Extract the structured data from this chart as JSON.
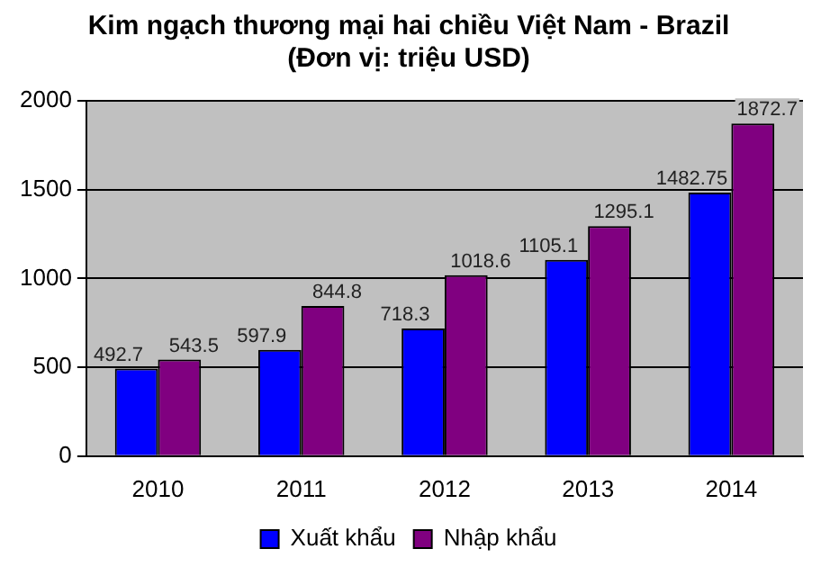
{
  "chart_data": {
    "type": "bar",
    "title": [
      "Kim ngạch thương mại hai chiều Việt Nam - Brazil",
      "(Đơn vị: triệu USD)"
    ],
    "categories": [
      "2010",
      "2011",
      "2012",
      "2013",
      "2014"
    ],
    "series": [
      {
        "name": "Xuất khẩu",
        "color": "#0000ff",
        "values": [
          492.7,
          597.9,
          718.3,
          1105.1,
          1482.75
        ]
      },
      {
        "name": "Nhập khẩu",
        "color": "#800080",
        "values": [
          543.5,
          844.8,
          1018.6,
          1295.1,
          1872.7
        ]
      }
    ],
    "ylim": [
      0,
      2000
    ],
    "yticks": [
      0,
      500,
      1000,
      1500,
      2000
    ],
    "grid": "y",
    "legend": "bottom",
    "data_labels": true
  }
}
